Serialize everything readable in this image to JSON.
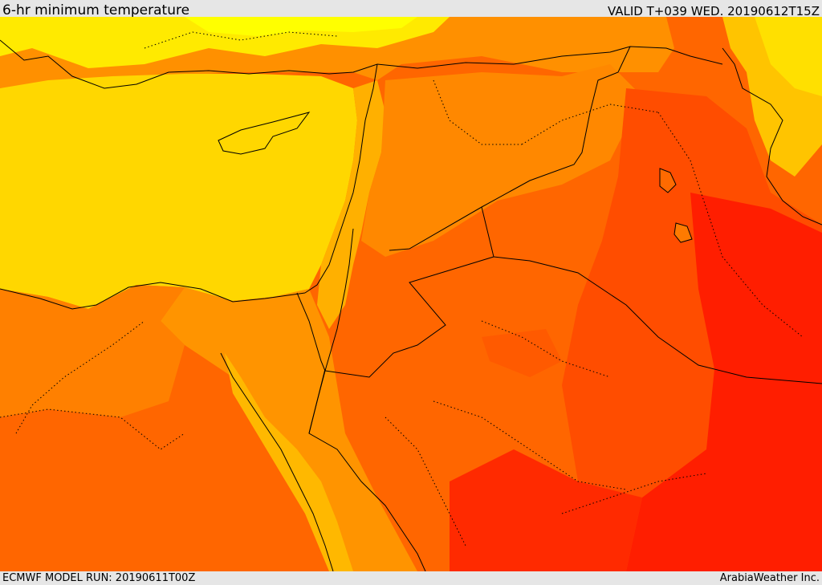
{
  "header": {
    "title": "6-hr minimum temperature",
    "valid": "VALID T+039 WED. 20190612T15Z"
  },
  "footer": {
    "model_run": "ECMWF MODEL RUN: 20190611T00Z",
    "credit": "ArabiaWeather Inc."
  },
  "palette": {
    "sea_yellow": "#ffd700",
    "light_yellow": "#ffea00",
    "yellow": "#ffff00",
    "orange_light": "#ffa500",
    "orange": "#ff8c00",
    "orange_dark": "#ff6600",
    "red_orange": "#ff4500",
    "red": "#ff1a00",
    "border": "#000000"
  }
}
